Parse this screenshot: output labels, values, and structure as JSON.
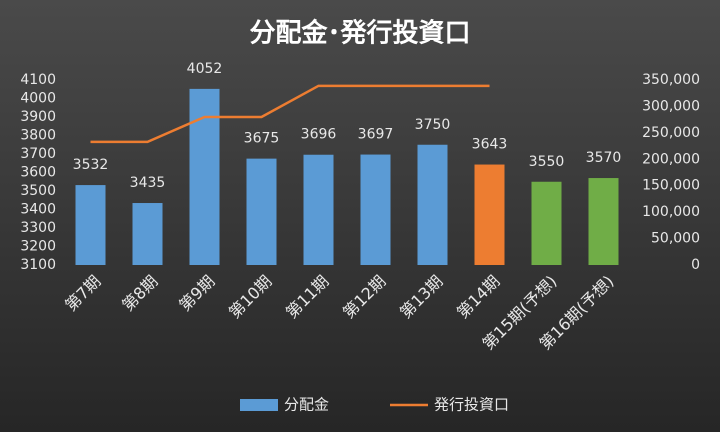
{
  "chart_data": {
    "type": "bar-line",
    "title": "分配金･発行投資口",
    "categories": [
      "第7期",
      "第8期",
      "第9期",
      "第10期",
      "第11期",
      "第12期",
      "第13期",
      "第14期",
      "第15期(予想)",
      "第16期(予想)"
    ],
    "series": [
      {
        "name": "分配金",
        "type": "bar",
        "colors": [
          "#5b9bd5",
          "#5b9bd5",
          "#5b9bd5",
          "#5b9bd5",
          "#5b9bd5",
          "#5b9bd5",
          "#5b9bd5",
          "#ed7d31",
          "#70ad47",
          "#70ad47"
        ],
        "color": "#5b9bd5",
        "values": [
          3532,
          3435,
          4052,
          3675,
          3696,
          3697,
          3750,
          3643,
          3550,
          3570
        ]
      },
      {
        "name": "発行投資口",
        "type": "line",
        "axis": "y2",
        "color": "#ed7d31",
        "values": [
          233000,
          233000,
          280000,
          280000,
          339000,
          339000,
          339000,
          339000,
          null,
          null
        ]
      }
    ],
    "ylim": [
      3100,
      4100
    ],
    "yticks": [
      3100,
      3200,
      3300,
      3400,
      3500,
      3600,
      3700,
      3800,
      3900,
      4000,
      4100
    ],
    "y2lim": [
      0,
      350000
    ],
    "y2ticks": [
      0,
      {
        "value": 50000,
        "label": "50,000"
      },
      {
        "value": 100000,
        "label": "100,000"
      },
      {
        "value": 150000,
        "label": "150,000"
      },
      {
        "value": 200000,
        "label": "200,000"
      },
      {
        "value": 250000,
        "label": "250,000"
      },
      {
        "value": 300000,
        "label": "300,000"
      },
      {
        "value": 350000,
        "label": "350,000"
      }
    ],
    "legend": "bottom"
  }
}
